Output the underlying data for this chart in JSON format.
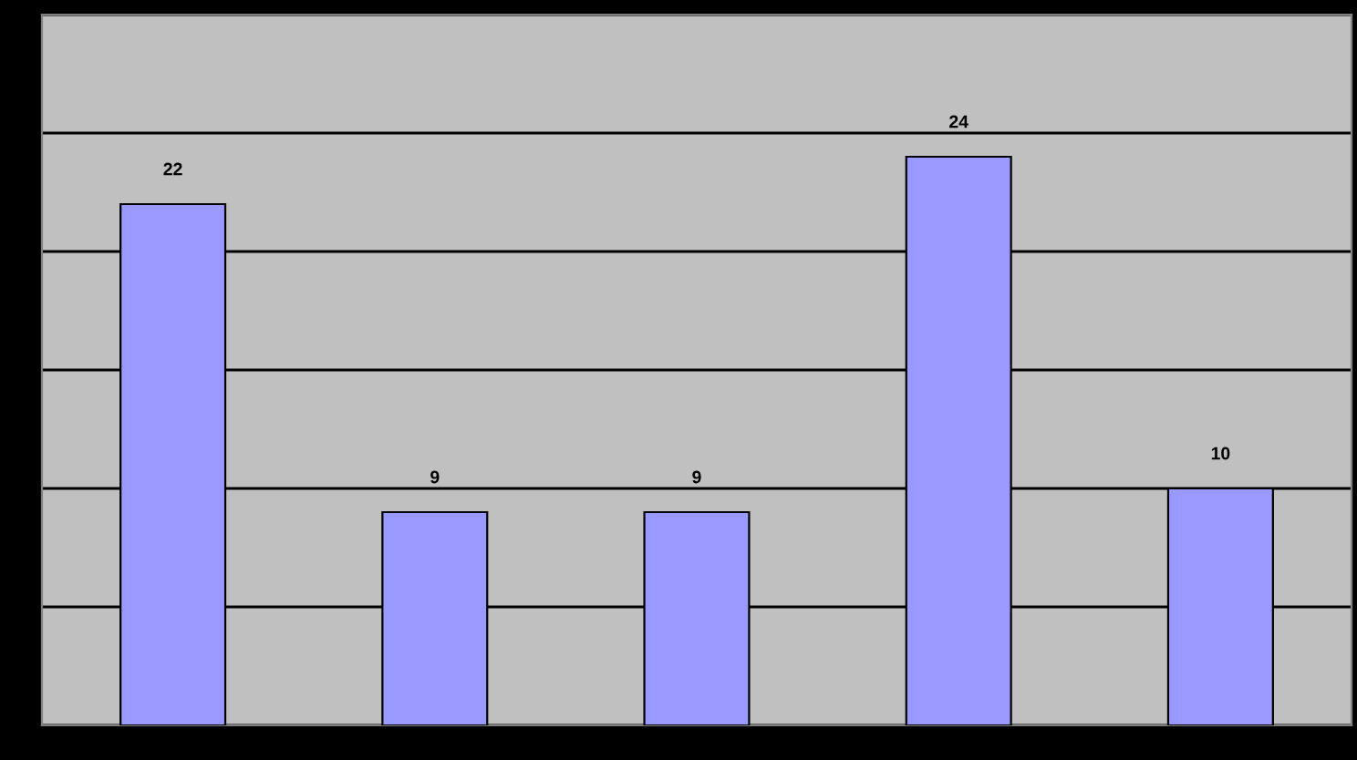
{
  "chart_data": {
    "type": "bar",
    "categories": [
      null,
      null,
      null,
      null,
      null
    ],
    "values": [
      22,
      9,
      9,
      24,
      10
    ],
    "color": "#9999ff",
    "data_labels": true,
    "ylim": [
      0,
      30
    ],
    "yticks": [
      {
        "value": 0,
        "label": null
      },
      {
        "value": 5,
        "label": null
      },
      {
        "value": 10,
        "label": null
      },
      {
        "value": 15,
        "label": null
      },
      {
        "value": 20,
        "label": null
      },
      {
        "value": 25,
        "label": null
      },
      {
        "value": 30,
        "label": null
      }
    ],
    "grid": "y"
  }
}
